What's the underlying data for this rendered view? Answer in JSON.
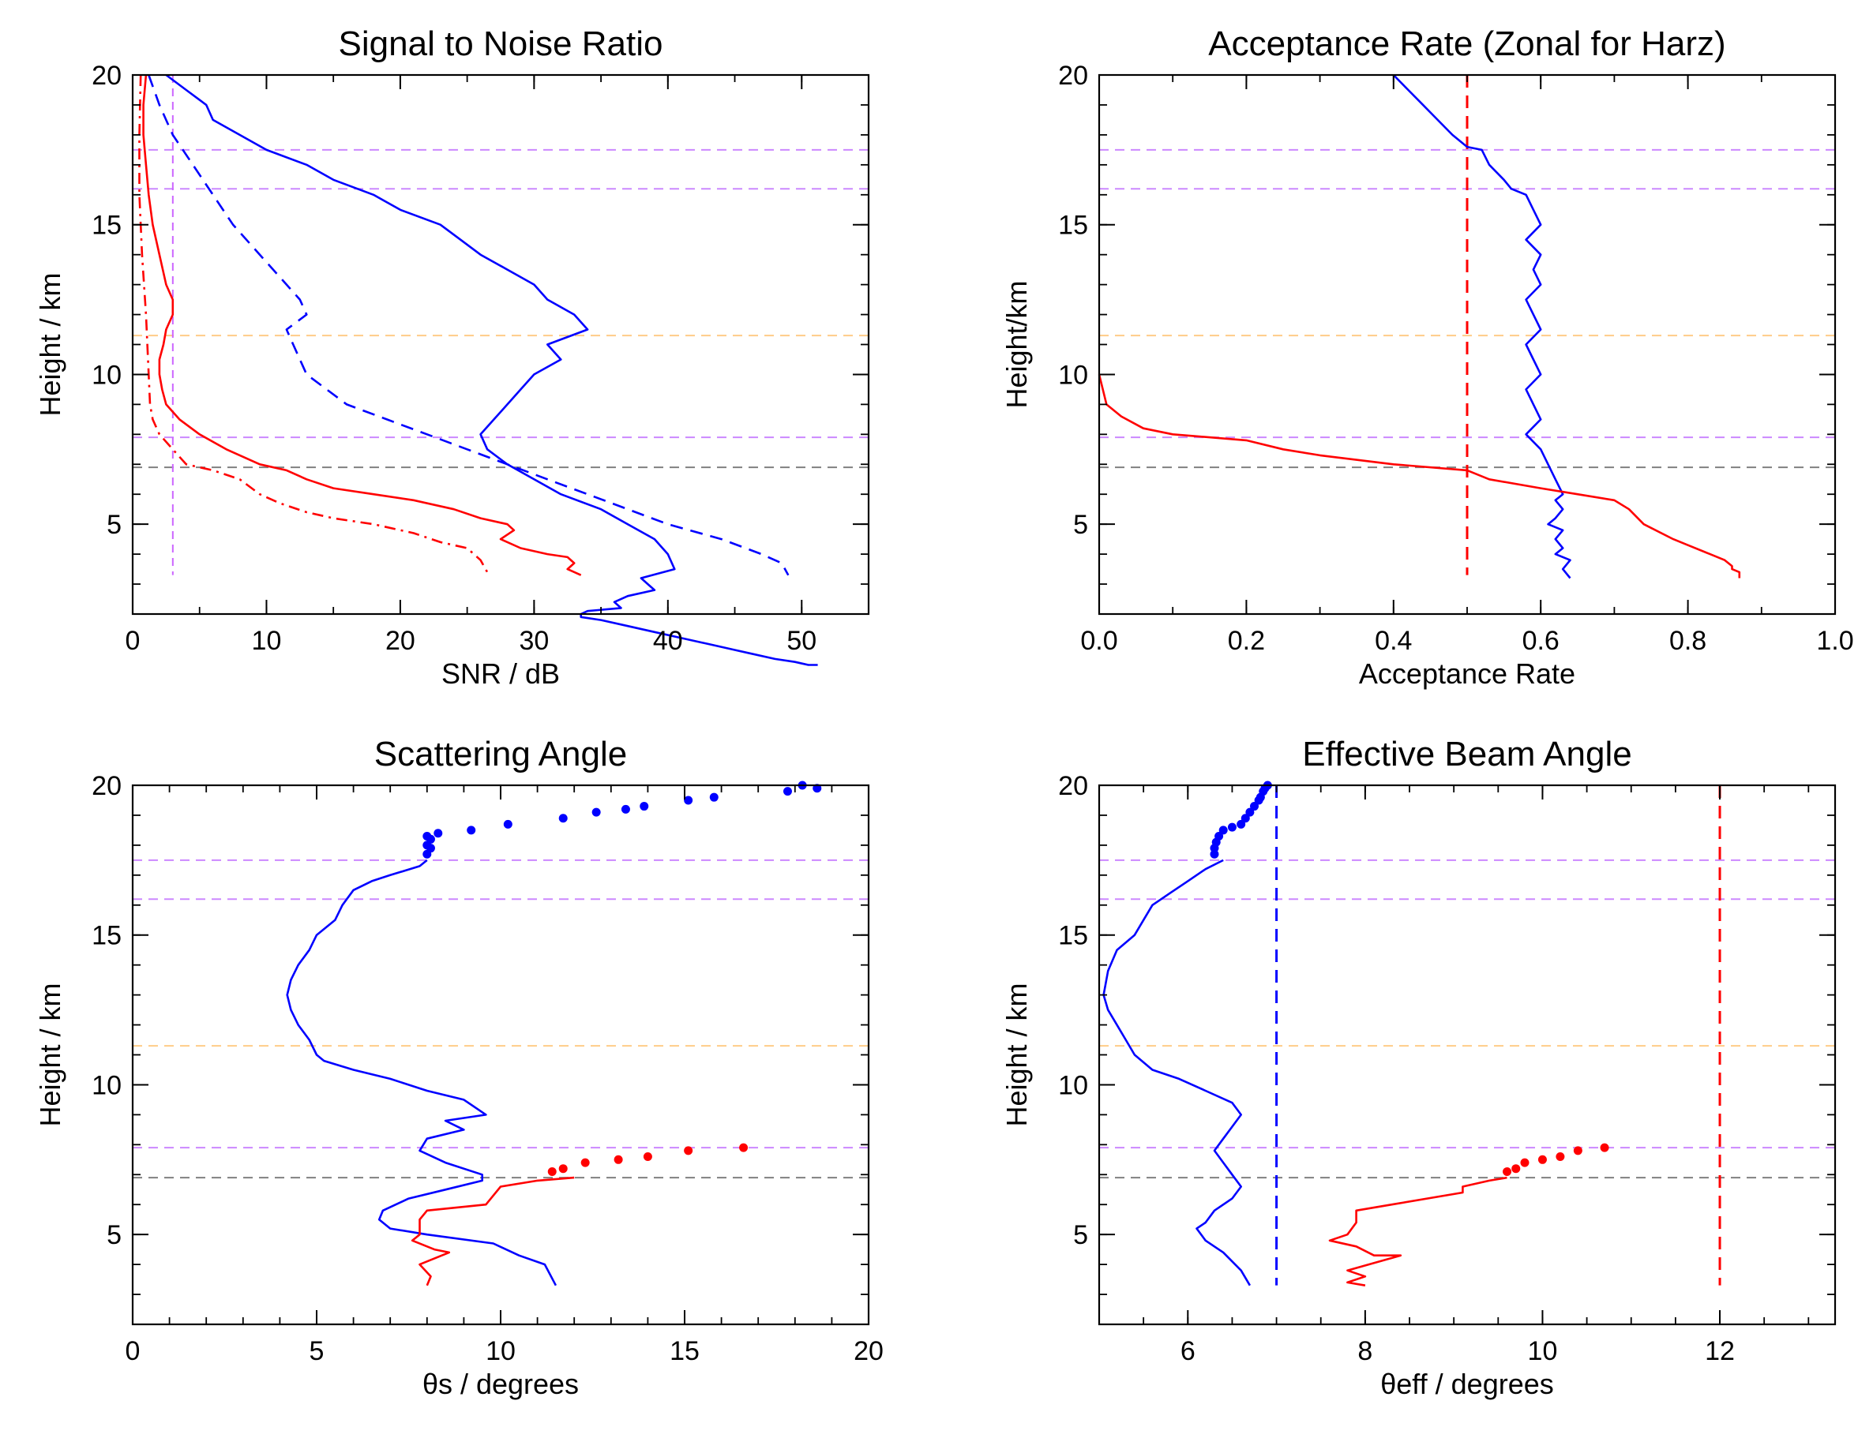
{
  "chart_data": [
    {
      "type": "line",
      "title": "Signal to Noise Ratio",
      "xlabel": "SNR / dB",
      "ylabel": "Height / km",
      "xlim": [
        0,
        55
      ],
      "ylim": [
        2,
        20
      ],
      "xticks": [
        0,
        10,
        20,
        30,
        40,
        50
      ],
      "xtick_labels": [
        "0",
        "10",
        "20",
        "30",
        "40",
        "50"
      ],
      "xminor": 5,
      "yticks": [
        5,
        10,
        15,
        20
      ],
      "ytick_labels": [
        "5",
        "10",
        "15",
        "20"
      ],
      "yminor": 1,
      "hlines": [
        {
          "y": 17.5,
          "color": "#cc88ff"
        },
        {
          "y": 16.2,
          "color": "#cc88ff"
        },
        {
          "y": 11.3,
          "color": "#ffcc88"
        },
        {
          "y": 7.9,
          "color": "#cc88ff"
        },
        {
          "y": 6.9,
          "color": "#808080"
        }
      ],
      "vlines": [
        {
          "x": 3,
          "color": "#cc66ff",
          "style": "dash-thin"
        }
      ],
      "series": [
        {
          "name": "snr-blue-solid",
          "color": "#0000ff",
          "style": "solid",
          "x": [
            2.5,
            4,
            5.5,
            6,
            8,
            10,
            13,
            15,
            18,
            20,
            23,
            24.5,
            26,
            28,
            30,
            31,
            33,
            34,
            31,
            32,
            30,
            29,
            28,
            27,
            26,
            26.5,
            28,
            30,
            32,
            35,
            37,
            39,
            40,
            40.5,
            38,
            38.5,
            39,
            37,
            36,
            36.5,
            34,
            33.5,
            33.5,
            35,
            37,
            39,
            41,
            43,
            45,
            46,
            48,
            49.5,
            50.5,
            51.2
          ],
          "y": [
            20,
            19.5,
            19,
            18.5,
            18,
            17.5,
            17,
            16.5,
            16,
            15.5,
            15,
            14.5,
            14,
            13.5,
            13,
            12.5,
            12,
            11.5,
            11,
            10.5,
            10,
            9.5,
            9,
            8.5,
            8,
            7.5,
            7,
            6.5,
            6,
            5.5,
            5,
            4.5,
            4,
            3.5,
            3.2,
            3,
            2.8,
            2.6,
            2.4,
            2.2,
            2.1,
            2,
            1.9,
            1.8,
            1.6,
            1.4,
            1.2,
            1,
            0.8,
            0.7,
            0.5,
            0.4,
            0.3,
            0.3
          ]
        },
        {
          "name": "snr-blue-dashed",
          "color": "#0000ff",
          "style": "dash",
          "x": [
            1.2,
            2,
            3,
            4.5,
            6,
            7.5,
            9.5,
            11.5,
            12.5,
            13,
            11.5,
            12,
            12.5,
            13,
            16,
            19,
            22,
            25,
            28,
            31,
            34,
            37,
            40,
            44,
            47,
            48.5,
            49
          ],
          "y": [
            20,
            19,
            18,
            17,
            16,
            15,
            14,
            13,
            12.5,
            12,
            11.5,
            11,
            10.5,
            10,
            9,
            8.5,
            8,
            7.5,
            7,
            6.5,
            6,
            5.5,
            5,
            4.5,
            4,
            3.7,
            3.3
          ]
        },
        {
          "name": "snr-red-solid",
          "color": "#ff0000",
          "style": "solid",
          "x": [
            1,
            0.8,
            0.8,
            1,
            1.2,
            1.5,
            2,
            2.5,
            3,
            3,
            2.5,
            2.3,
            2,
            2,
            2.2,
            2.5,
            3.5,
            5,
            7,
            9.5,
            11.5,
            13,
            15,
            18,
            21,
            24,
            26,
            28,
            28.5,
            27.5,
            29,
            31,
            32.5,
            33,
            32.5,
            33.5
          ],
          "y": [
            20,
            19,
            18,
            17,
            16,
            15,
            14,
            13,
            12.5,
            12,
            11.5,
            11,
            10.5,
            10,
            9.5,
            9,
            8.5,
            8,
            7.5,
            7,
            6.8,
            6.5,
            6.2,
            6,
            5.8,
            5.5,
            5.2,
            5,
            4.8,
            4.5,
            4.2,
            4,
            3.9,
            3.7,
            3.5,
            3.3
          ]
        },
        {
          "name": "snr-red-dashdot",
          "color": "#ff0000",
          "style": "dashdot",
          "x": [
            0.6,
            0.5,
            0.5,
            0.7,
            1,
            1.2,
            1.3,
            1.5,
            2,
            3,
            4,
            6,
            8,
            9.5,
            11,
            13,
            15,
            18,
            21,
            23,
            25,
            26,
            26.5
          ],
          "y": [
            20,
            18,
            16,
            14,
            12,
            10,
            9,
            8.5,
            8,
            7.5,
            7,
            6.8,
            6.5,
            6,
            5.7,
            5.4,
            5.2,
            5,
            4.7,
            4.4,
            4.2,
            3.8,
            3.4
          ]
        }
      ]
    },
    {
      "type": "line",
      "title": "Acceptance Rate (Zonal for Harz)",
      "xlabel": "Acceptance Rate",
      "ylabel": "Height/km",
      "xlim": [
        0.0,
        1.0
      ],
      "ylim": [
        2,
        20
      ],
      "xticks": [
        0.0,
        0.2,
        0.4,
        0.6,
        0.8,
        1.0
      ],
      "xtick_labels": [
        "0.0",
        "0.2",
        "0.4",
        "0.6",
        "0.8",
        "1.0"
      ],
      "xminor": 0.1,
      "yticks": [
        5,
        10,
        15,
        20
      ],
      "ytick_labels": [
        "5",
        "10",
        "15",
        "20"
      ],
      "yminor": 1,
      "hlines": [
        {
          "y": 17.5,
          "color": "#cc88ff"
        },
        {
          "y": 16.2,
          "color": "#cc88ff"
        },
        {
          "y": 11.3,
          "color": "#ffcc88"
        },
        {
          "y": 7.9,
          "color": "#cc88ff"
        },
        {
          "y": 6.9,
          "color": "#808080"
        }
      ],
      "vlines": [
        {
          "x": 0.5,
          "color": "#ff0000",
          "style": "dash"
        }
      ],
      "series": [
        {
          "name": "acceptance-blue",
          "color": "#0000ff",
          "style": "solid",
          "x": [
            0.4,
            0.42,
            0.44,
            0.46,
            0.48,
            0.49,
            0.5,
            0.52,
            0.53,
            0.55,
            0.56,
            0.58,
            0.59,
            0.6,
            0.58,
            0.6,
            0.59,
            0.6,
            0.58,
            0.59,
            0.6,
            0.58,
            0.59,
            0.6,
            0.58,
            0.59,
            0.6,
            0.58,
            0.6,
            0.61,
            0.62,
            0.63,
            0.62,
            0.63,
            0.62,
            0.61,
            0.63,
            0.62,
            0.63,
            0.62,
            0.64,
            0.63,
            0.64
          ],
          "y": [
            20,
            19.5,
            19,
            18.5,
            18,
            17.8,
            17.6,
            17.5,
            17,
            16.5,
            16.2,
            16,
            15.5,
            15,
            14.5,
            14,
            13.5,
            13,
            12.5,
            12,
            11.5,
            11,
            10.5,
            10,
            9.5,
            9,
            8.5,
            8,
            7.5,
            7,
            6.5,
            6,
            5.8,
            5.5,
            5.2,
            5,
            4.8,
            4.5,
            4.2,
            4,
            3.8,
            3.5,
            3.2
          ]
        },
        {
          "name": "acceptance-red",
          "color": "#ff0000",
          "style": "solid",
          "x": [
            0,
            0.01,
            0.03,
            0.06,
            0.1,
            0.2,
            0.25,
            0.3,
            0.4,
            0.5,
            0.53,
            0.6,
            0.65,
            0.7,
            0.72,
            0.74,
            0.78,
            0.8,
            0.83,
            0.85,
            0.86,
            0.86,
            0.87,
            0.87
          ],
          "y": [
            10,
            9,
            8.6,
            8.2,
            8,
            7.8,
            7.5,
            7.3,
            7,
            6.8,
            6.5,
            6.2,
            6,
            5.8,
            5.5,
            5,
            4.5,
            4.3,
            4,
            3.8,
            3.6,
            3.5,
            3.4,
            3.2
          ]
        }
      ]
    },
    {
      "type": "line",
      "title": "Scattering Angle",
      "xlabel": "θs / degrees",
      "ylabel": "Height / km",
      "xlim": [
        0,
        20
      ],
      "ylim": [
        2,
        20
      ],
      "xticks": [
        0,
        5,
        10,
        15,
        20
      ],
      "xtick_labels": [
        "0",
        "5",
        "10",
        "15",
        "20"
      ],
      "xminor": 1,
      "yticks": [
        5,
        10,
        15,
        20
      ],
      "ytick_labels": [
        "5",
        "10",
        "15",
        "20"
      ],
      "yminor": 1,
      "hlines": [
        {
          "y": 17.5,
          "color": "#cc88ff"
        },
        {
          "y": 16.2,
          "color": "#cc88ff"
        },
        {
          "y": 11.3,
          "color": "#ffcc88"
        },
        {
          "y": 7.9,
          "color": "#cc88ff"
        },
        {
          "y": 6.9,
          "color": "#808080"
        }
      ],
      "vlines": [],
      "series": [
        {
          "name": "scatter-blue-line",
          "color": "#0000ff",
          "style": "solid",
          "x": [
            8,
            7.8,
            7,
            6.5,
            6,
            5.7,
            5.5,
            5,
            4.8,
            4.5,
            4.3,
            4.2,
            4.3,
            4.5,
            4.8,
            5,
            5.2,
            6,
            7,
            8,
            9,
            9.6,
            8.5,
            9,
            8,
            7.8,
            8.5,
            9.5,
            9.5,
            8.5,
            7.5,
            6.8,
            6.7,
            7,
            8,
            9.8,
            10.5,
            11.2,
            11.5
          ],
          "y": [
            17.5,
            17.3,
            17,
            16.8,
            16.5,
            16,
            15.5,
            15,
            14.5,
            14,
            13.5,
            13,
            12.5,
            12,
            11.5,
            11,
            10.8,
            10.5,
            10.2,
            9.8,
            9.5,
            9,
            8.8,
            8.5,
            8.2,
            7.8,
            7.4,
            7,
            6.8,
            6.5,
            6.2,
            5.8,
            5.5,
            5.2,
            5,
            4.7,
            4.3,
            4,
            3.3
          ]
        },
        {
          "name": "scatter-red-line",
          "color": "#ff0000",
          "style": "solid",
          "x": [
            12,
            11,
            10,
            9.8,
            9.6,
            8,
            7.8,
            7.8,
            7.6,
            8.2,
            8.6,
            7.8,
            8.1,
            8
          ],
          "y": [
            6.9,
            6.8,
            6.6,
            6.3,
            6,
            5.8,
            5.5,
            5,
            4.8,
            4.5,
            4.4,
            4,
            3.6,
            3.3
          ]
        }
      ],
      "dots": [
        {
          "name": "scatter-blue-dots",
          "color": "#0000ff",
          "x": [
            8,
            8.1,
            8,
            8.1,
            8,
            8.3,
            9.2,
            10.2,
            11.7,
            12.6,
            13.4,
            13.9,
            15.1,
            15.8,
            17.8,
            18.2,
            18.6
          ],
          "y": [
            17.7,
            17.9,
            18,
            18.2,
            18.3,
            18.4,
            18.5,
            18.7,
            18.9,
            19.1,
            19.2,
            19.3,
            19.5,
            19.6,
            19.8,
            20,
            19.9
          ]
        },
        {
          "name": "scatter-red-dots",
          "color": "#ff0000",
          "x": [
            11.4,
            11.7,
            12.3,
            13.2,
            14,
            15.1,
            16.6
          ],
          "y": [
            7.1,
            7.2,
            7.4,
            7.5,
            7.6,
            7.8,
            7.9
          ]
        }
      ]
    },
    {
      "type": "line",
      "title": "Effective Beam Angle",
      "xlabel": "θeff  / degrees",
      "ylabel": "Height / km",
      "xlim": [
        5,
        13.3
      ],
      "ylim": [
        2,
        20
      ],
      "xticks": [
        6,
        8,
        10,
        12
      ],
      "xtick_labels": [
        "6",
        "8",
        "10",
        "12"
      ],
      "xminor": 0.5,
      "yticks": [
        5,
        10,
        15,
        20
      ],
      "ytick_labels": [
        "5",
        "10",
        "15",
        "20"
      ],
      "yminor": 1,
      "hlines": [
        {
          "y": 17.5,
          "color": "#cc88ff"
        },
        {
          "y": 16.2,
          "color": "#cc88ff"
        },
        {
          "y": 11.3,
          "color": "#ffcc88"
        },
        {
          "y": 7.9,
          "color": "#cc88ff"
        },
        {
          "y": 6.9,
          "color": "#808080"
        }
      ],
      "vlines": [
        {
          "x": 7,
          "color": "#0000ff",
          "style": "dash"
        },
        {
          "x": 12,
          "color": "#ff0000",
          "style": "dash"
        }
      ],
      "series": [
        {
          "name": "beam-blue-line",
          "color": "#0000ff",
          "style": "solid",
          "x": [
            6.4,
            6.2,
            6,
            5.8,
            5.6,
            5.5,
            5.4,
            5.2,
            5.1,
            5.05,
            5.1,
            5.2,
            5.3,
            5.4,
            5.6,
            5.9,
            6.2,
            6.5,
            6.6,
            6.5,
            6.4,
            6.3,
            6.4,
            6.5,
            6.6,
            6.5,
            6.3,
            6.2,
            6.1,
            6.2,
            6.4,
            6.6,
            6.7
          ],
          "y": [
            17.5,
            17.2,
            16.8,
            16.4,
            16,
            15.5,
            15,
            14.5,
            13.8,
            13,
            12.5,
            12,
            11.5,
            11,
            10.5,
            10.2,
            9.8,
            9.4,
            9,
            8.6,
            8.2,
            7.8,
            7.4,
            7,
            6.6,
            6.2,
            5.8,
            5.4,
            5.2,
            4.8,
            4.4,
            3.8,
            3.3
          ]
        },
        {
          "name": "beam-red-line",
          "color": "#ff0000",
          "style": "solid",
          "x": [
            9.6,
            9.4,
            9.1,
            9.1,
            8.3,
            7.9,
            7.9,
            7.8,
            7.6,
            7.9,
            8.1,
            8.4,
            7.8,
            8,
            7.8,
            8
          ],
          "y": [
            6.9,
            6.8,
            6.6,
            6.4,
            6,
            5.8,
            5.4,
            5,
            4.8,
            4.6,
            4.3,
            4.3,
            3.8,
            3.6,
            3.4,
            3.3
          ]
        }
      ],
      "dots": [
        {
          "name": "beam-blue-dots",
          "color": "#0000ff",
          "x": [
            6.3,
            6.3,
            6.32,
            6.35,
            6.4,
            6.5,
            6.6,
            6.65,
            6.7,
            6.75,
            6.8,
            6.82,
            6.85,
            6.87,
            6.9
          ],
          "y": [
            17.7,
            17.9,
            18.1,
            18.3,
            18.5,
            18.6,
            18.7,
            18.9,
            19.1,
            19.3,
            19.5,
            19.6,
            19.8,
            19.9,
            20
          ]
        },
        {
          "name": "beam-red-dots",
          "color": "#ff0000",
          "x": [
            9.6,
            9.7,
            9.8,
            10,
            10.2,
            10.4,
            10.7
          ],
          "y": [
            7.1,
            7.2,
            7.4,
            7.5,
            7.6,
            7.8,
            7.9
          ]
        }
      ]
    }
  ]
}
